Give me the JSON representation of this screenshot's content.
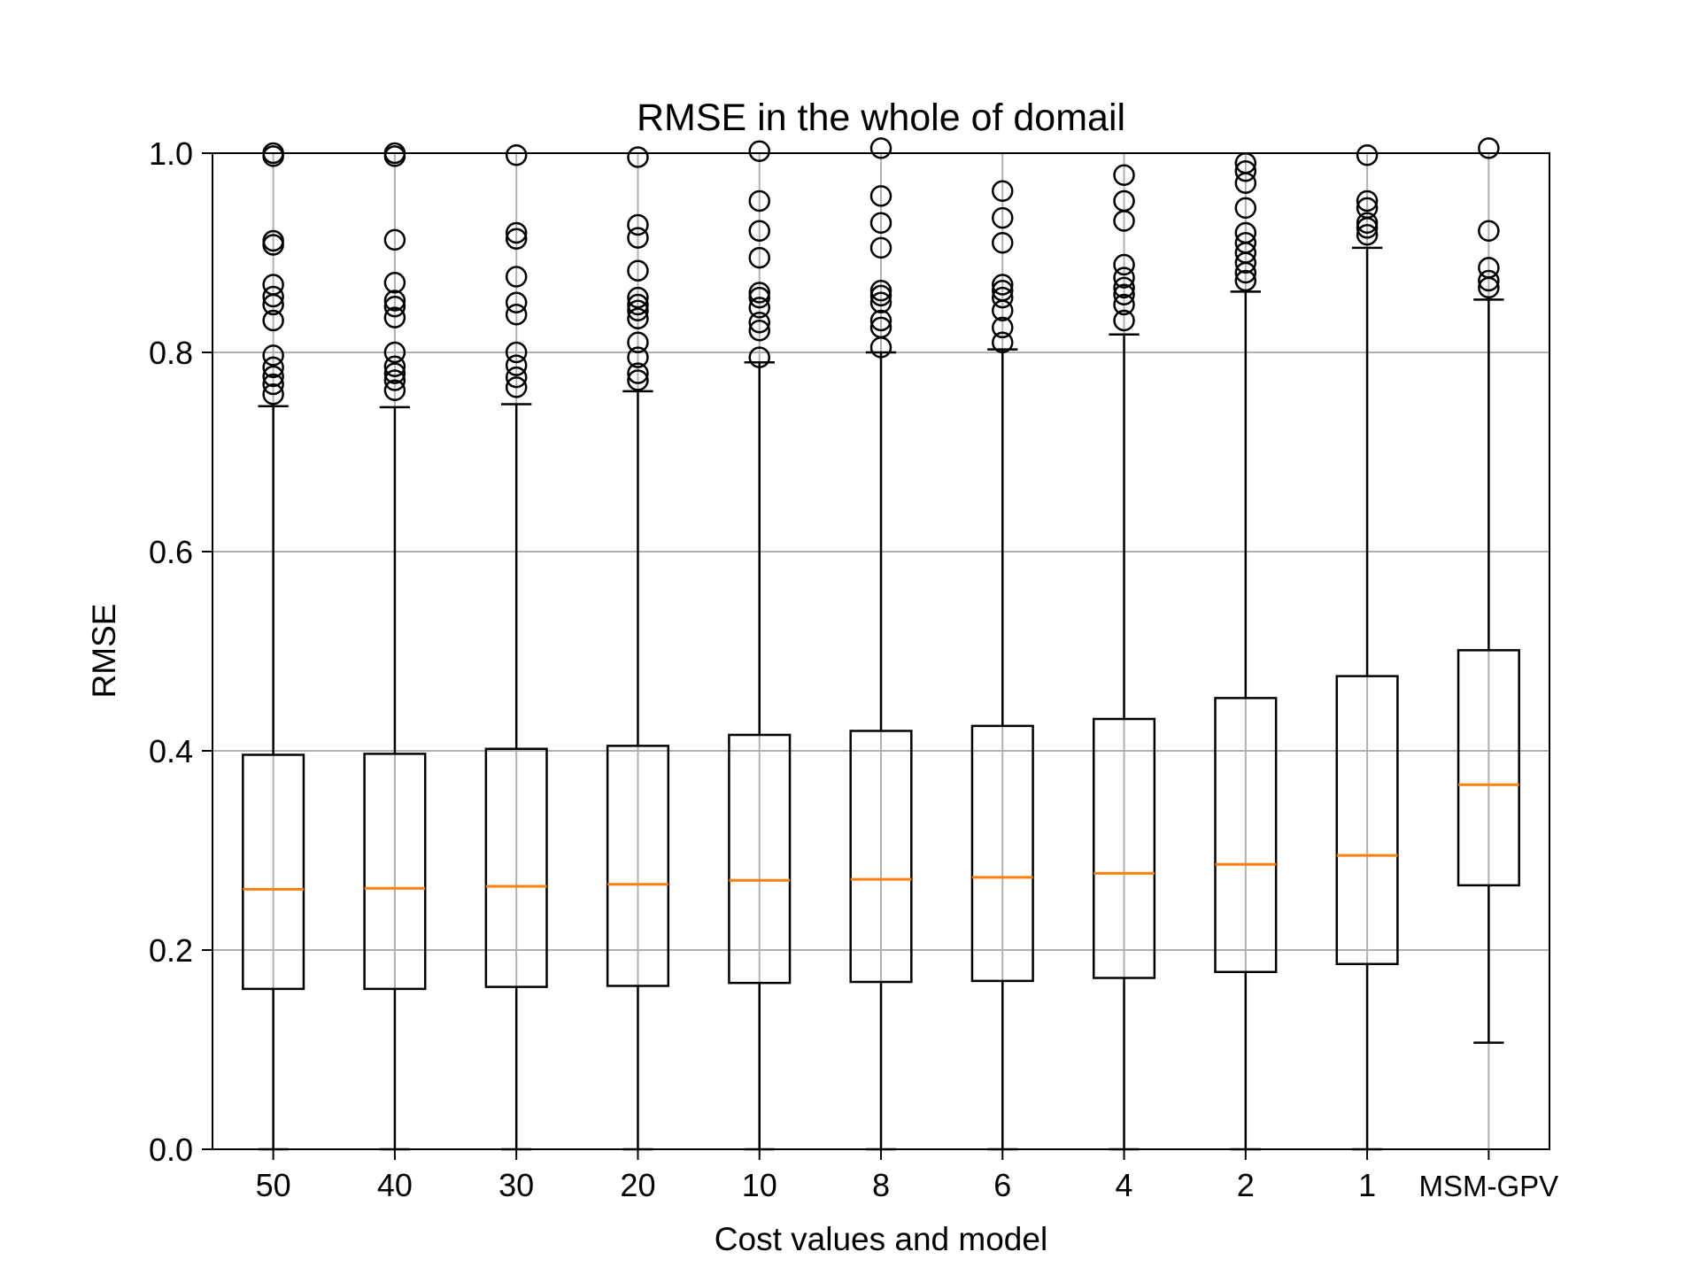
{
  "chart_data": {
    "type": "box",
    "title": "RMSE in the whole of domail",
    "xlabel": "Cost values and model",
    "ylabel": "RMSE",
    "ylim": [
      0,
      1
    ],
    "yticks": [
      "0.0",
      "0.2",
      "0.4",
      "0.6",
      "0.8",
      "1.0"
    ],
    "grid": true,
    "median_color": "#ff7f0e",
    "categories": [
      "50",
      "40",
      "30",
      "20",
      "10",
      "8",
      "6",
      "4",
      "2",
      "1",
      "MSM-GPV"
    ],
    "boxes": [
      {
        "whisker_low": 0.0,
        "q1": 0.161,
        "median": 0.261,
        "q3": 0.396,
        "whisker_high": 0.746,
        "outliers": [
          0.758,
          0.768,
          0.776,
          0.785,
          0.797,
          0.832,
          0.848,
          0.856,
          0.868,
          0.908,
          0.912,
          0.997,
          1.0
        ]
      },
      {
        "whisker_low": 0.0,
        "q1": 0.161,
        "median": 0.262,
        "q3": 0.397,
        "whisker_high": 0.745,
        "outliers": [
          0.762,
          0.772,
          0.779,
          0.786,
          0.8,
          0.835,
          0.846,
          0.852,
          0.87,
          0.913,
          0.997,
          1.0
        ]
      },
      {
        "whisker_low": 0.0,
        "q1": 0.163,
        "median": 0.264,
        "q3": 0.402,
        "whisker_high": 0.748,
        "outliers": [
          0.765,
          0.775,
          0.787,
          0.8,
          0.838,
          0.85,
          0.876,
          0.914,
          0.92,
          0.998
        ]
      },
      {
        "whisker_low": 0.0,
        "q1": 0.164,
        "median": 0.266,
        "q3": 0.405,
        "whisker_high": 0.761,
        "outliers": [
          0.772,
          0.779,
          0.795,
          0.81,
          0.834,
          0.842,
          0.848,
          0.855,
          0.882,
          0.915,
          0.928,
          0.996
        ]
      },
      {
        "whisker_low": 0.0,
        "q1": 0.167,
        "median": 0.27,
        "q3": 0.416,
        "whisker_high": 0.79,
        "outliers": [
          0.795,
          0.822,
          0.83,
          0.845,
          0.855,
          0.86,
          0.895,
          0.922,
          0.952,
          1.002
        ]
      },
      {
        "whisker_low": 0.0,
        "q1": 0.168,
        "median": 0.271,
        "q3": 0.42,
        "whisker_high": 0.8,
        "outliers": [
          0.805,
          0.825,
          0.832,
          0.85,
          0.857,
          0.862,
          0.905,
          0.93,
          0.957,
          1.005
        ]
      },
      {
        "whisker_low": 0.0,
        "q1": 0.169,
        "median": 0.273,
        "q3": 0.425,
        "whisker_high": 0.803,
        "outliers": [
          0.81,
          0.825,
          0.842,
          0.855,
          0.862,
          0.868,
          0.91,
          0.935,
          0.962
        ]
      },
      {
        "whisker_low": 0.0,
        "q1": 0.172,
        "median": 0.277,
        "q3": 0.432,
        "whisker_high": 0.818,
        "outliers": [
          0.832,
          0.848,
          0.858,
          0.865,
          0.875,
          0.888,
          0.932,
          0.952,
          0.978
        ]
      },
      {
        "whisker_low": 0.0,
        "q1": 0.178,
        "median": 0.286,
        "q3": 0.453,
        "whisker_high": 0.861,
        "outliers": [
          0.872,
          0.88,
          0.89,
          0.9,
          0.91,
          0.92,
          0.945,
          0.97,
          0.982,
          0.99
        ]
      },
      {
        "whisker_low": 0.0,
        "q1": 0.186,
        "median": 0.295,
        "q3": 0.475,
        "whisker_high": 0.905,
        "outliers": [
          0.918,
          0.925,
          0.93,
          0.945,
          0.952,
          0.998
        ]
      },
      {
        "whisker_low": 0.107,
        "q1": 0.265,
        "median": 0.366,
        "q3": 0.501,
        "whisker_high": 0.853,
        "outliers": [
          0.865,
          0.872,
          0.885,
          0.922,
          1.005
        ]
      }
    ]
  }
}
